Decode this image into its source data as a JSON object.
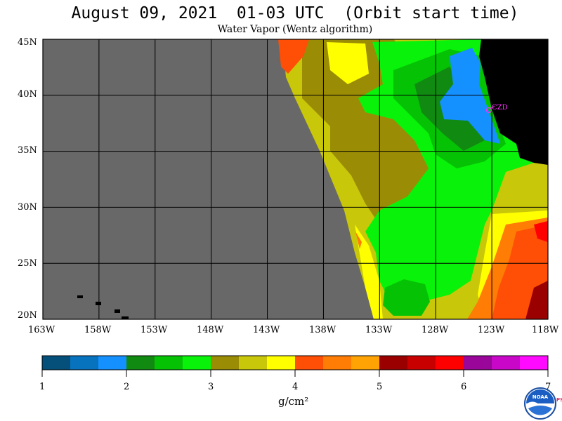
{
  "title": "August 09, 2021  01-03 UTC  (Orbit start time)",
  "subtitle": "Water Vapor (Wentz algorithm)",
  "map": {
    "lon_range": [
      -163,
      -118
    ],
    "lat_range": [
      20,
      45
    ],
    "lat_labels": [
      "45N",
      "40N",
      "35N",
      "30N",
      "25N",
      "20N"
    ],
    "lon_labels": [
      "163W",
      "158W",
      "153W",
      "148W",
      "143W",
      "138W",
      "133W",
      "128W",
      "123W",
      "118W"
    ],
    "station_label": "CZD",
    "no_data_color": "#686868",
    "land_color": "#000000",
    "station_color": "#ff2cff"
  },
  "colorbar": {
    "min": 1,
    "max": 7,
    "tick_labels": [
      "1",
      "2",
      "3",
      "4",
      "5",
      "6",
      "7"
    ],
    "units": "g/cm²",
    "colors": [
      "#05507a",
      "#0772be",
      "#1590ff",
      "#118a11",
      "#05c205",
      "#09f209",
      "#9a8c05",
      "#c9c70a",
      "#ffff00",
      "#ff4e05",
      "#ff7c05",
      "#ffa305",
      "#9b0000",
      "#c90000",
      "#ff0000",
      "#9a059a",
      "#c907c9",
      "#ff09ff"
    ]
  },
  "logo": {
    "name": "NOAA",
    "side_text": "PSL"
  }
}
